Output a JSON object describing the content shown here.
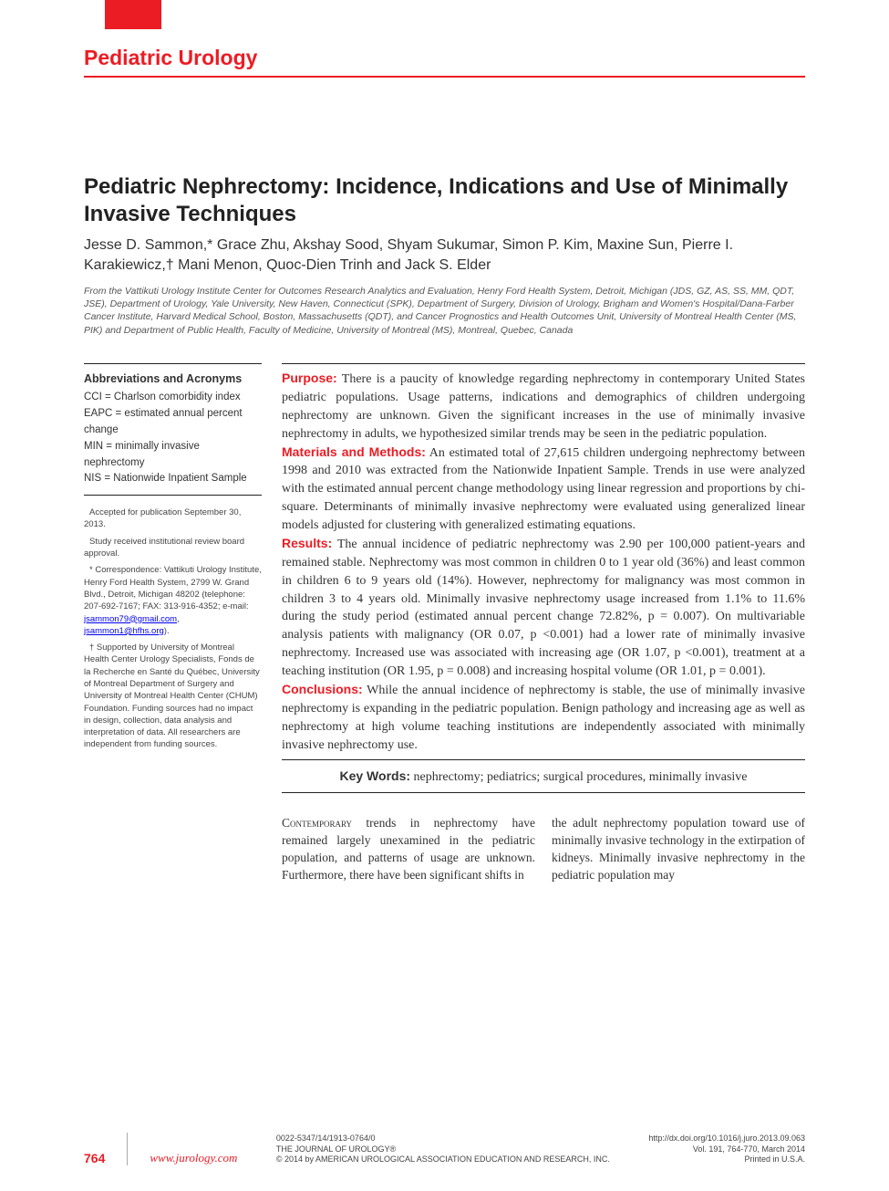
{
  "section": "Pediatric Urology",
  "title": "Pediatric Nephrectomy: Incidence, Indications and Use of Minimally Invasive Techniques",
  "authors": "Jesse D. Sammon,* Grace Zhu, Akshay Sood, Shyam Sukumar, Simon P. Kim, Maxine Sun, Pierre I. Karakiewicz,† Mani Menon, Quoc-Dien Trinh and Jack S. Elder",
  "affiliations": "From the Vattikuti Urology Institute Center for Outcomes Research Analytics and Evaluation, Henry Ford Health System, Detroit, Michigan (JDS, GZ, AS, SS, MM, QDT, JSE), Department of Urology, Yale University, New Haven, Connecticut (SPK), Department of Surgery, Division of Urology, Brigham and Women's Hospital/Dana-Farber Cancer Institute, Harvard Medical School, Boston, Massachusetts (QDT), and Cancer Prognostics and Health Outcomes Unit, University of Montreal Health Center (MS, PIK) and Department of Public Health, Faculty of Medicine, University of Montreal (MS), Montreal, Quebec, Canada",
  "abbrev": {
    "heading": "Abbreviations and Acronyms",
    "items": [
      "CCI = Charlson comorbidity index",
      "EAPC = estimated annual percent change",
      "MIN = minimally invasive nephrectomy",
      "NIS = Nationwide Inpatient Sample"
    ]
  },
  "notes": {
    "accepted": "Accepted for publication September 30, 2013.",
    "irb": "Study received institutional review board approval.",
    "corr": "* Correspondence: Vattikuti Urology Institute, Henry Ford Health System, 2799 W. Grand Blvd., Detroit, Michigan 48202 (telephone: 207-692-7167; FAX: 313-916-4352; e-mail: ",
    "email1": "jsammon79@gmail.com",
    "email2": "jsammon1@hfhs.org",
    "support": "† Supported by University of Montreal Health Center Urology Specialists, Fonds de la Recherche en Santé du Québec, University of Montreal Department of Surgery and University of Montreal Health Center (CHUM) Foundation. Funding sources had no impact in design, collection, data analysis and interpretation of data. All researchers are independent from funding sources."
  },
  "abstract": {
    "purpose_label": "Purpose:",
    "purpose": " There is a paucity of knowledge regarding nephrectomy in contemporary United States pediatric populations. Usage patterns, indications and demographics of children undergoing nephrectomy are unknown. Given the significant increases in the use of minimally invasive nephrectomy in adults, we hypothesized similar trends may be seen in the pediatric population.",
    "methods_label": "Materials and Methods:",
    "methods": " An estimated total of 27,615 children undergoing nephrectomy between 1998 and 2010 was extracted from the Nationwide Inpatient Sample. Trends in use were analyzed with the estimated annual percent change methodology using linear regression and proportions by chi-square. Determinants of minimally invasive nephrectomy were evaluated using generalized linear models adjusted for clustering with generalized estimating equations.",
    "results_label": "Results:",
    "results": " The annual incidence of pediatric nephrectomy was 2.90 per 100,000 patient-years and remained stable. Nephrectomy was most common in children 0 to 1 year old (36%) and least common in children 6 to 9 years old (14%). However, nephrectomy for malignancy was most common in children 3 to 4 years old. Minimally invasive nephrectomy usage increased from 1.1% to 11.6% during the study period (estimated annual percent change 72.82%, p = 0.007). On multivariable analysis patients with malignancy (OR 0.07, p <0.001) had a lower rate of minimally invasive nephrectomy. Increased use was associated with increasing age (OR 1.07, p <0.001), treatment at a teaching institution (OR 1.95, p = 0.008) and increasing hospital volume (OR 1.01, p = 0.001).",
    "conclusions_label": "Conclusions:",
    "conclusions": " While the annual incidence of nephrectomy is stable, the use of minimally invasive nephrectomy is expanding in the pediatric population. Benign pathology and increasing age as well as nephrectomy at high volume teaching institutions are independently associated with minimally invasive nephrectomy use."
  },
  "keywords": {
    "label": "Key Words:",
    "text": " nephrectomy; pediatrics; surgical procedures, minimally invasive"
  },
  "body": {
    "col1_lead": "Contemporary",
    "col1": " trends in nephrectomy have remained largely unexamined in the pediatric population, and patterns of usage are unknown. Furthermore, there have been significant shifts in",
    "col2": "the adult nephrectomy population toward use of minimally invasive technology in the extirpation of kidneys. Minimally invasive nephrectomy in the pediatric population may"
  },
  "footer": {
    "page": "764",
    "site": "www.jurology.com",
    "issn": "0022-5347/14/1913-0764/0",
    "journal": "THE JOURNAL OF UROLOGY®",
    "copyright": "© 2014 by AMERICAN UROLOGICAL ASSOCIATION EDUCATION AND RESEARCH, INC.",
    "doi": "http://dx.doi.org/10.1016/j.juro.2013.09.063",
    "citation": "Vol. 191, 764-770, March 2014",
    "printed": "Printed in U.S.A."
  }
}
